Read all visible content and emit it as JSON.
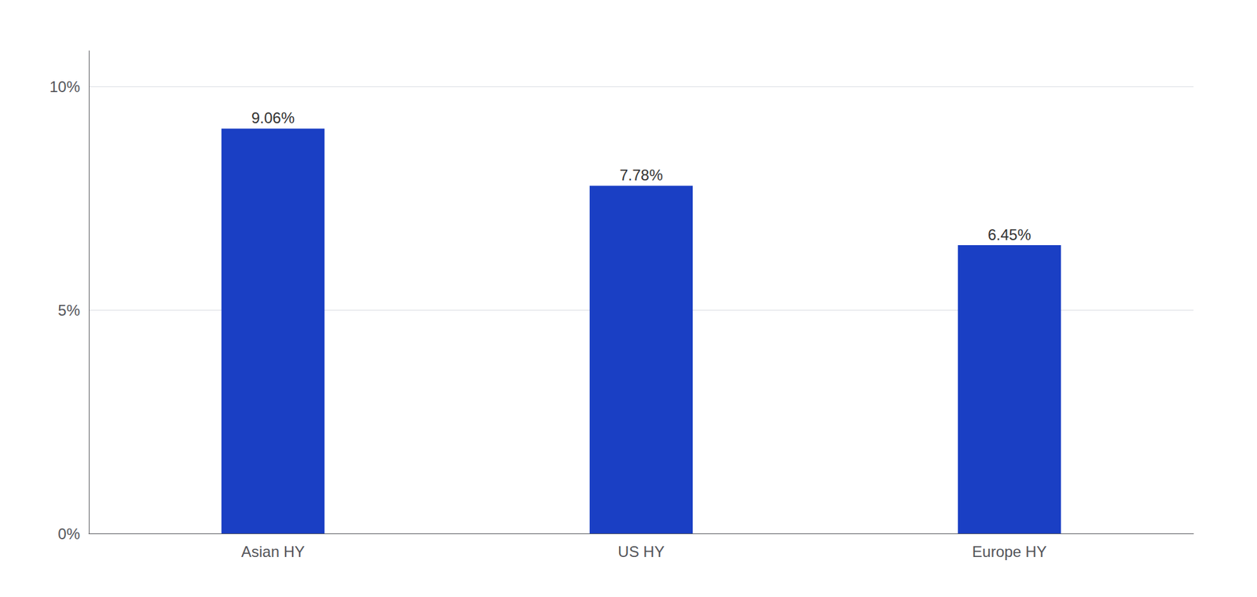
{
  "chart_data": {
    "type": "bar",
    "categories": [
      "Asian HY",
      "US HY",
      "Europe HY"
    ],
    "values": [
      9.06,
      7.78,
      6.45
    ],
    "value_labels": [
      "9.06%",
      "7.78%",
      "6.45%"
    ],
    "data_labels": true,
    "color": "#1A3FC4",
    "ylim": [
      0,
      10.8
    ],
    "yticks": [
      {
        "value": 0,
        "label": "0%"
      },
      {
        "value": 5,
        "label": "5%"
      },
      {
        "value": 10,
        "label": "10%"
      }
    ],
    "grid": true
  }
}
